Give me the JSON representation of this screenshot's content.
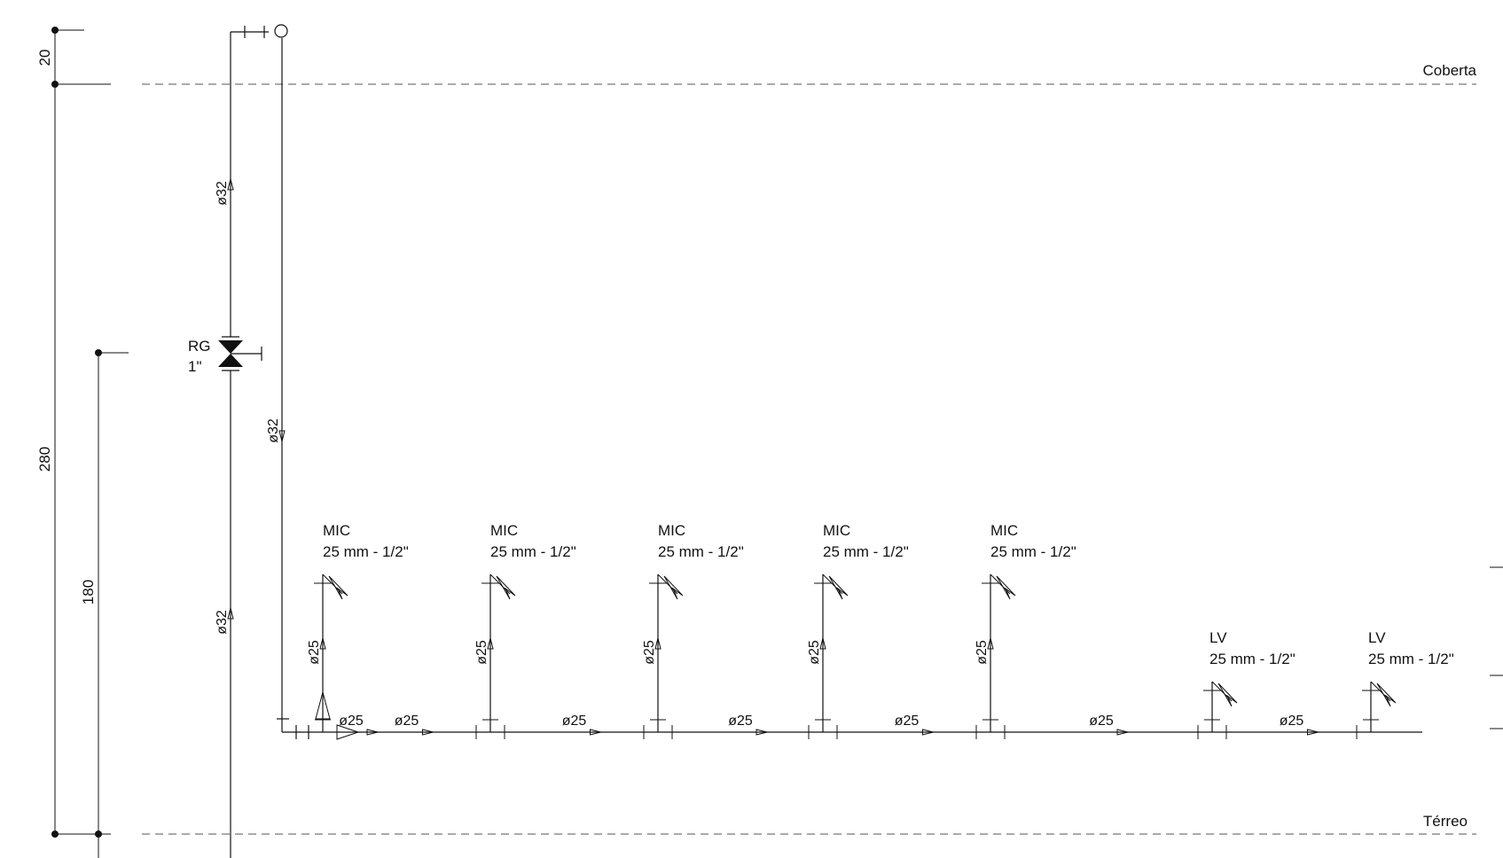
{
  "levels": {
    "top": "Coberta",
    "bottom": "Térreo"
  },
  "dimensions": {
    "d20": "20",
    "d280": "280",
    "d180": "180"
  },
  "valve": {
    "code": "RG",
    "size": "1\""
  },
  "pipes": {
    "main_up_1": "ø32",
    "main_up_2": "ø32",
    "main_down": "ø32",
    "branch": "ø25"
  },
  "fixtures": [
    {
      "code": "MIC",
      "spec": "25 mm - 1/2\""
    },
    {
      "code": "MIC",
      "spec": "25 mm - 1/2\""
    },
    {
      "code": "MIC",
      "spec": "25 mm - 1/2\""
    },
    {
      "code": "MIC",
      "spec": "25 mm - 1/2\""
    },
    {
      "code": "MIC",
      "spec": "25 mm - 1/2\""
    },
    {
      "code": "LV",
      "spec": "25 mm - 1/2\""
    },
    {
      "code": "LV",
      "spec": "25 mm - 1/2\""
    }
  ],
  "colors": {
    "line": "#111111",
    "level_line": "#777777"
  }
}
